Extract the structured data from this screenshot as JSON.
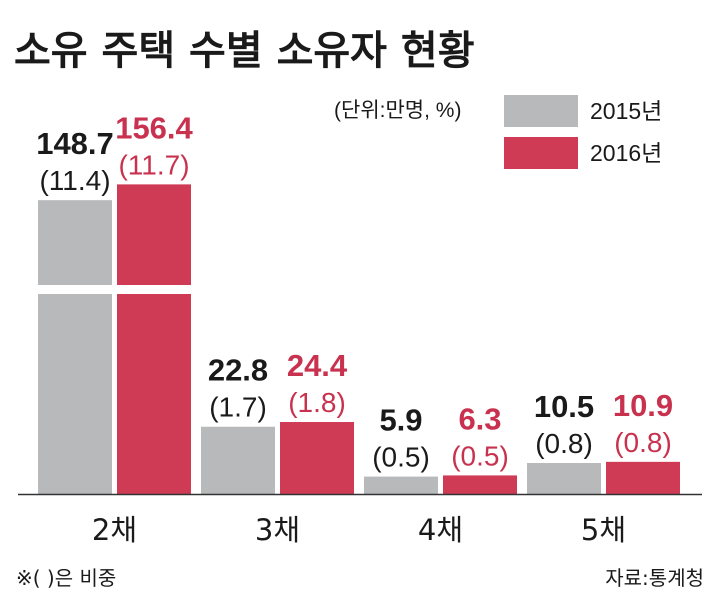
{
  "title": "소유 주택 수별 소유자 현황",
  "unit_note": "(단위:만명, %)",
  "note": "※(   )은 비중",
  "source": "자료:통계청",
  "colors": {
    "series_2015": "#b8b9bb",
    "series_2016": "#cf3a55",
    "label_2015": "#1a1a1a",
    "label_2016": "#c8324e",
    "axis": "#333333"
  },
  "chart_data": {
    "type": "bar",
    "title": "소유 주택 수별 소유자 현황",
    "categories": [
      "2채",
      "3채",
      "4채",
      "5채"
    ],
    "series": [
      {
        "name": "2015년",
        "values": [
          148.7,
          22.8,
          5.9,
          10.5
        ],
        "shares": [
          "(11.4)",
          "(1.7)",
          "(0.5)",
          "(0.8)"
        ]
      },
      {
        "name": "2016년",
        "values": [
          156.4,
          24.4,
          6.3,
          10.9
        ],
        "shares": [
          "(11.7)",
          "(1.8)",
          "(0.5)",
          "(0.8)"
        ]
      }
    ],
    "value_labels": [
      [
        "148.7",
        "22.8",
        "5.9",
        "10.5"
      ],
      [
        "156.4",
        "24.4",
        "6.3",
        "10.9"
      ]
    ],
    "axis_break": true,
    "legend_position": "top-right",
    "grid": false
  }
}
